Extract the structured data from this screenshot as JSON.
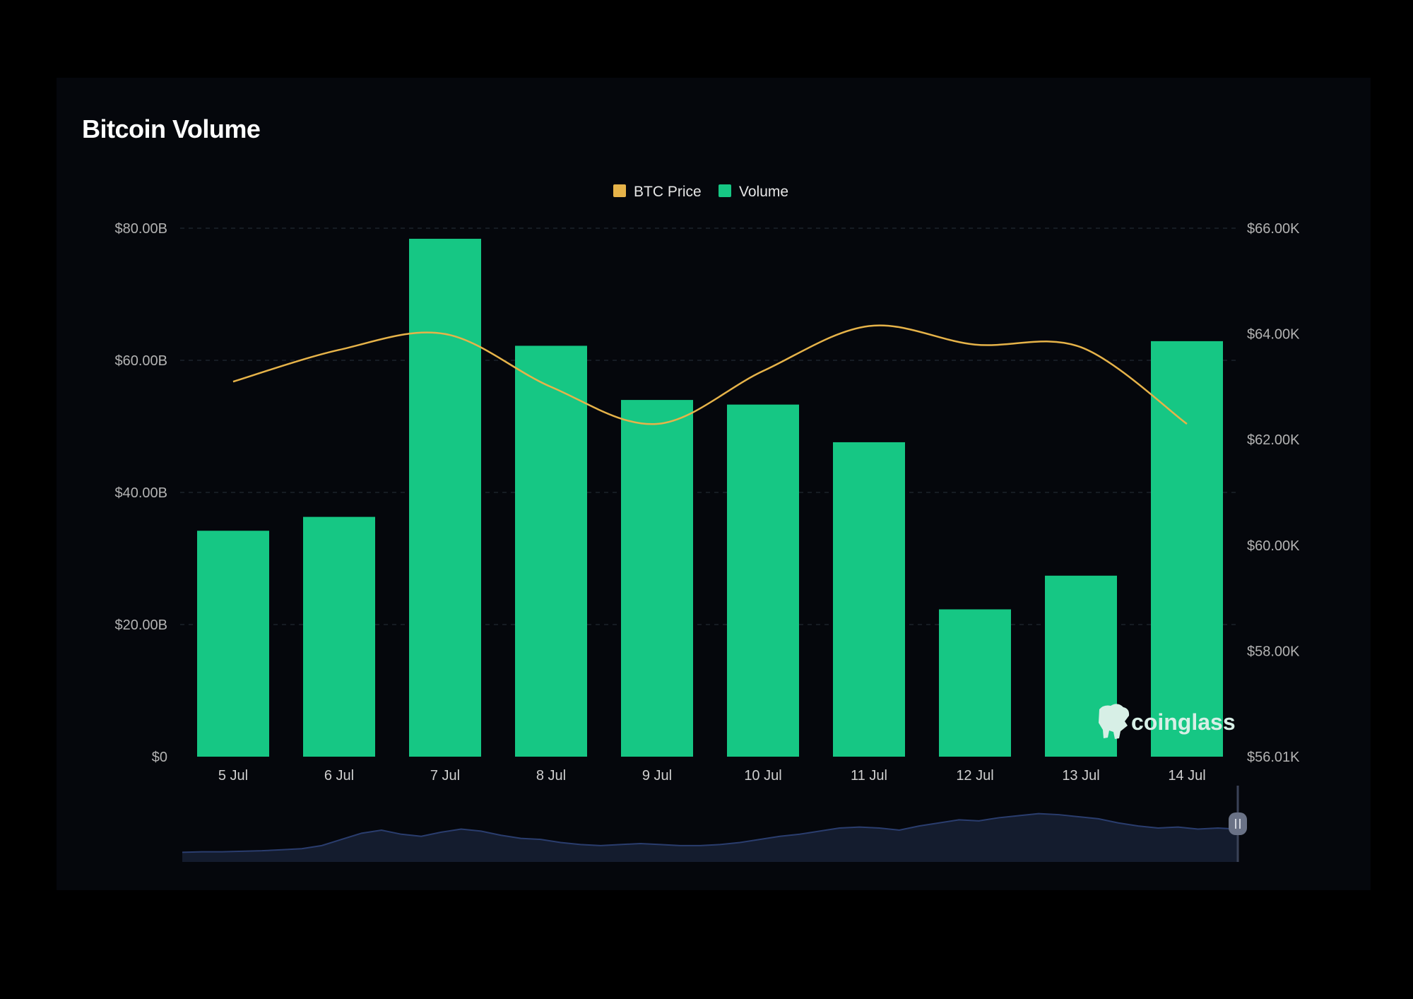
{
  "title": "Bitcoin Volume",
  "colors": {
    "background": "#05070c",
    "volume": "#16c784",
    "price": "#e6b349",
    "grid": "#26303a",
    "navigator_fill": "#141c2e",
    "navigator_line": "#2a3d6e"
  },
  "watermark": {
    "text": "coinglass",
    "icon": "coinglass-logo-icon"
  },
  "chart_data": {
    "type": "bar",
    "title": "Bitcoin Volume",
    "categories": [
      "5 Jul",
      "6 Jul",
      "7 Jul",
      "8 Jul",
      "9 Jul",
      "10 Jul",
      "11 Jul",
      "12 Jul",
      "13 Jul",
      "14 Jul"
    ],
    "legend": {
      "position": "top-center",
      "items": [
        "BTC Price",
        "Volume"
      ]
    },
    "series": [
      {
        "name": "Volume",
        "kind": "bar",
        "axis": "left",
        "values": [
          34.2,
          36.3,
          78.4,
          62.2,
          54.0,
          53.3,
          47.6,
          22.3,
          27.4,
          62.9
        ]
      },
      {
        "name": "BTC Price",
        "kind": "line",
        "axis": "right",
        "values": [
          63100,
          63700,
          64000,
          63000,
          62300,
          63300,
          64150,
          63800,
          63750,
          62300
        ]
      }
    ],
    "y_left": {
      "ylim": [
        0,
        80
      ],
      "ticks": [
        "$0",
        "$20.00B",
        "$40.00B",
        "$60.00B",
        "$80.00B"
      ]
    },
    "y_right": {
      "ylim": [
        56010,
        66000
      ],
      "ticks": [
        "$56.01K",
        "$58.00K",
        "$60.00K",
        "$62.00K",
        "$64.00K",
        "$66.00K"
      ]
    },
    "grid": true,
    "navigator": {
      "values": [
        0.05,
        0.06,
        0.06,
        0.07,
        0.08,
        0.1,
        0.12,
        0.18,
        0.3,
        0.42,
        0.48,
        0.4,
        0.36,
        0.44,
        0.5,
        0.46,
        0.38,
        0.32,
        0.3,
        0.24,
        0.2,
        0.18,
        0.2,
        0.22,
        0.2,
        0.18,
        0.18,
        0.2,
        0.24,
        0.3,
        0.36,
        0.4,
        0.46,
        0.52,
        0.54,
        0.52,
        0.48,
        0.56,
        0.62,
        0.68,
        0.66,
        0.72,
        0.76,
        0.8,
        0.78,
        0.74,
        0.7,
        0.62,
        0.56,
        0.52,
        0.54,
        0.5,
        0.52,
        0.5
      ]
    }
  }
}
